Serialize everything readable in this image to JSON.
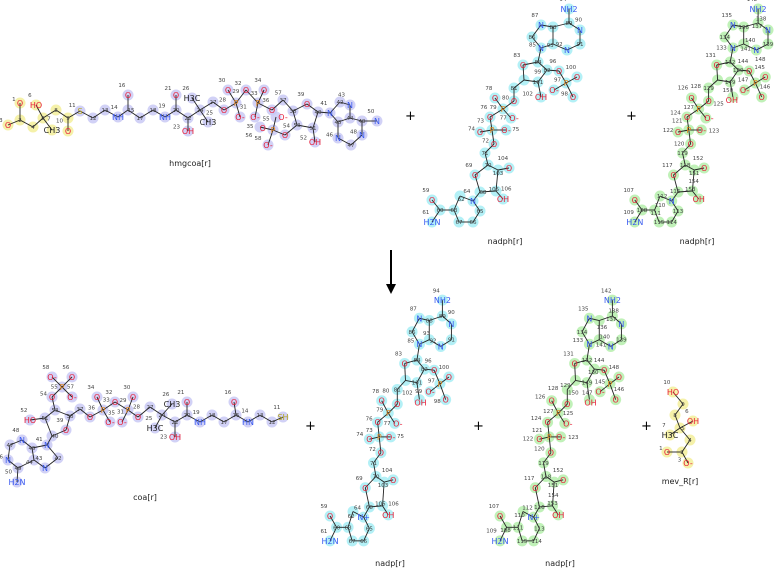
{
  "colors": {
    "O": "#e8203a",
    "N": "#3a5af0",
    "P": "#e0851f",
    "S": "#b3a31c",
    "C": "#222222",
    "hl_yellow": "#f3ee9a",
    "hl_lavender": "#c9c9f4",
    "hl_cyan": "#a6edf4",
    "hl_green": "#b5efab"
  },
  "reaction": {
    "plus_sign": "+",
    "arrow": "reaction-arrow-down"
  },
  "molecules": [
    {
      "id": "hmgcoa",
      "name": "hmgcoa[r]",
      "highlight_groups": [
        {
          "color": "hl_yellow",
          "atoms_upto": 10
        },
        {
          "color": "hl_lavender"
        }
      ],
      "atoms": [
        [
          "O",
          "1"
        ],
        [
          "",
          "2"
        ],
        [
          "O",
          "3"
        ],
        [
          "",
          "4"
        ],
        [
          "",
          "5"
        ],
        [
          "HO",
          "6"
        ],
        [
          "CH3",
          "7"
        ],
        [
          "",
          "8"
        ],
        [
          "",
          "9"
        ],
        [
          "O",
          "10"
        ],
        [
          "S",
          "11"
        ],
        [
          "",
          "12"
        ],
        [
          "",
          "13"
        ],
        [
          "NH",
          "14"
        ],
        [
          "",
          "15"
        ],
        [
          "O",
          "16"
        ],
        [
          "",
          "17"
        ],
        [
          "",
          "18"
        ],
        [
          "NH",
          "19"
        ],
        [
          "",
          "20"
        ],
        [
          "O",
          "21"
        ],
        [
          "",
          "22"
        ],
        [
          "OH",
          "23"
        ],
        [
          "",
          "24"
        ],
        [
          "CH3",
          "25"
        ],
        [
          "H3C",
          "26"
        ],
        [
          "",
          "27"
        ],
        [
          "O",
          "28"
        ],
        [
          "P",
          "29"
        ],
        [
          "O",
          "30"
        ],
        [
          "O-",
          "31"
        ],
        [
          "O",
          "32"
        ],
        [
          "P",
          "33"
        ],
        [
          "O",
          "34"
        ],
        [
          "O-",
          "35"
        ],
        [
          "O",
          "36"
        ],
        [
          "",
          "37"
        ],
        [
          "",
          "38"
        ],
        [
          "O",
          "39"
        ],
        [
          "",
          "40"
        ],
        [
          "",
          "51"
        ],
        [
          "",
          "53"
        ],
        [
          "O",
          "54"
        ],
        [
          "P",
          "55"
        ],
        [
          "O",
          "56"
        ],
        [
          "O-",
          "57"
        ],
        [
          "O-",
          "58"
        ],
        [
          "OH",
          "52"
        ],
        [
          "N",
          "41"
        ],
        [
          "",
          "42"
        ],
        [
          "N",
          "43"
        ],
        [
          "",
          "44"
        ],
        [
          "",
          "45"
        ],
        [
          "N",
          "46"
        ],
        [
          "",
          "47"
        ],
        [
          "N",
          "48"
        ],
        [
          "",
          "49"
        ],
        [
          "N",
          "50"
        ]
      ]
    },
    {
      "id": "nadph1",
      "name": "nadph[r]",
      "highlight": "hl_cyan",
      "atoms": [
        [
          "NH2",
          "94"
        ],
        [
          "",
          "89"
        ],
        [
          "N",
          "90"
        ],
        [
          "",
          "91"
        ],
        [
          "N",
          "92"
        ],
        [
          "",
          "93"
        ],
        [
          "",
          "88"
        ],
        [
          "N",
          "87"
        ],
        [
          "",
          "86"
        ],
        [
          "N",
          "85"
        ],
        [
          "",
          "84"
        ],
        [
          "",
          "82"
        ],
        [
          "",
          "101"
        ],
        [
          "",
          ""
        ],
        [
          "O",
          "83"
        ],
        [
          "O",
          "96"
        ],
        [
          "P",
          "97"
        ],
        [
          "O",
          "100"
        ],
        [
          "O",
          "98"
        ],
        [
          "O-",
          "99"
        ],
        [
          "OH",
          "102"
        ],
        [
          "",
          "81"
        ],
        [
          "O",
          "80"
        ],
        [
          "P",
          "79"
        ],
        [
          "O",
          "78"
        ],
        [
          "O-",
          "77"
        ],
        [
          "O",
          "76"
        ],
        [
          "P",
          "73"
        ],
        [
          "O",
          "74"
        ],
        [
          "O-",
          "75"
        ],
        [
          "O",
          "72"
        ],
        [
          "",
          "71"
        ],
        [
          "",
          "70"
        ],
        [
          "O",
          "69"
        ],
        [
          "",
          "68"
        ],
        [
          "",
          "105"
        ],
        [
          "",
          "103"
        ],
        [
          "O",
          "104"
        ],
        [
          "OH",
          "106"
        ],
        [
          "N",
          "64"
        ],
        [
          "",
          "62"
        ],
        [
          "",
          "63"
        ],
        [
          "",
          "67"
        ],
        [
          "",
          "66"
        ],
        [
          "",
          "65"
        ],
        [
          "",
          "60"
        ],
        [
          "O",
          "59"
        ],
        [
          "H2N",
          "61"
        ]
      ]
    },
    {
      "id": "nadph2",
      "name": "nadph[r]",
      "highlight": "hl_green",
      "atoms": [
        [
          "NH2",
          "142"
        ],
        [
          "",
          "137"
        ],
        [
          "N",
          "138"
        ],
        [
          "",
          "139"
        ],
        [
          "N",
          "140"
        ],
        [
          "",
          "141"
        ],
        [
          "",
          "136"
        ],
        [
          "N",
          "135"
        ],
        [
          "",
          "134"
        ],
        [
          "N",
          "133"
        ],
        [
          "",
          "132"
        ],
        [
          "",
          "130"
        ],
        [
          "",
          "149"
        ],
        [
          "",
          ""
        ],
        [
          "O",
          "131"
        ],
        [
          "O",
          "144"
        ],
        [
          "P",
          "145"
        ],
        [
          "O",
          "148"
        ],
        [
          "O",
          "146"
        ],
        [
          "O-",
          "147"
        ],
        [
          "OH",
          "150"
        ],
        [
          "",
          "129"
        ],
        [
          "O",
          "128"
        ],
        [
          "P",
          "127"
        ],
        [
          "O",
          "126"
        ],
        [
          "O-",
          "125"
        ],
        [
          "O",
          "124"
        ],
        [
          "P",
          "121"
        ],
        [
          "O",
          "122"
        ],
        [
          "O-",
          "123"
        ],
        [
          "O",
          "120"
        ],
        [
          "",
          "119"
        ],
        [
          "",
          "118"
        ],
        [
          "O",
          "117"
        ],
        [
          "",
          "116"
        ],
        [
          "",
          "153"
        ],
        [
          "",
          "151"
        ],
        [
          "O",
          "152"
        ],
        [
          "OH",
          "154"
        ],
        [
          "N",
          "112"
        ],
        [
          "",
          "110"
        ],
        [
          "",
          "111"
        ],
        [
          "",
          "115"
        ],
        [
          "",
          "114"
        ],
        [
          "",
          "113"
        ],
        [
          "",
          "108"
        ],
        [
          "O",
          "107"
        ],
        [
          "H2N",
          "109"
        ]
      ]
    },
    {
      "id": "coa",
      "name": "coa[r]",
      "highlight": "hl_lavender",
      "atoms": [
        [
          "O-",
          "58"
        ],
        [
          "P",
          "55"
        ],
        [
          "O",
          "56"
        ],
        [
          "O-",
          "57"
        ],
        [
          "O",
          "54"
        ],
        [
          "",
          "53"
        ],
        [
          "",
          "38"
        ],
        [
          "O",
          "39"
        ],
        [
          "",
          "40"
        ],
        [
          "",
          "51"
        ],
        [
          "HO",
          "52"
        ],
        [
          "N",
          "41"
        ],
        [
          "",
          "42"
        ],
        [
          "N",
          "43"
        ],
        [
          "",
          "44"
        ],
        [
          "",
          "45"
        ],
        [
          "N",
          "48"
        ],
        [
          "",
          "47"
        ],
        [
          "N",
          "46"
        ],
        [
          "",
          "49"
        ],
        [
          "H2N",
          "50"
        ],
        [
          "",
          "37"
        ],
        [
          "O",
          "36"
        ],
        [
          "P",
          "33"
        ],
        [
          "O",
          "34"
        ],
        [
          "O-",
          "35"
        ],
        [
          "O",
          "32"
        ],
        [
          "P",
          "29"
        ],
        [
          "O",
          "30"
        ],
        [
          "O-",
          "31"
        ],
        [
          "O",
          "28"
        ],
        [
          "",
          "27"
        ],
        [
          "",
          "24"
        ],
        [
          "CH3",
          "26"
        ],
        [
          "H3C",
          "25"
        ],
        [
          "",
          "22"
        ],
        [
          "OH",
          "23"
        ],
        [
          "",
          "20"
        ],
        [
          "O",
          "21"
        ],
        [
          "NH",
          "19"
        ],
        [
          "",
          "18"
        ],
        [
          "",
          "17"
        ],
        [
          "",
          "15"
        ],
        [
          "O",
          "16"
        ],
        [
          "HN",
          "14"
        ],
        [
          "",
          "13"
        ],
        [
          "",
          "12"
        ],
        [
          "SH",
          "11"
        ]
      ]
    },
    {
      "id": "nadp1",
      "name": "nadp[r]",
      "highlight": "hl_cyan",
      "atoms": [
        [
          "NH2",
          "94"
        ],
        [
          "",
          "89"
        ],
        [
          "N",
          "90"
        ],
        [
          "",
          "91"
        ],
        [
          "N",
          "92"
        ],
        [
          "",
          "93"
        ],
        [
          "",
          "88"
        ],
        [
          "N",
          "87"
        ],
        [
          "",
          "86"
        ],
        [
          "N",
          "85"
        ],
        [
          "",
          "84"
        ],
        [
          "",
          "82"
        ],
        [
          "",
          "101"
        ],
        [
          "",
          ""
        ],
        [
          "O",
          "83"
        ],
        [
          "O",
          "96"
        ],
        [
          "P",
          "97"
        ],
        [
          "O",
          "100"
        ],
        [
          "O",
          "98"
        ],
        [
          "O-",
          "99"
        ],
        [
          "OH",
          "102"
        ],
        [
          "",
          "81"
        ],
        [
          "O",
          "80"
        ],
        [
          "P",
          "79"
        ],
        [
          "O",
          "78"
        ],
        [
          "O-",
          "77"
        ],
        [
          "O",
          "76"
        ],
        [
          "P",
          "73"
        ],
        [
          "O",
          "74"
        ],
        [
          "O-",
          "75"
        ],
        [
          "O",
          "72"
        ],
        [
          "",
          "71"
        ],
        [
          "",
          "70"
        ],
        [
          "O",
          "69"
        ],
        [
          "",
          "68"
        ],
        [
          "",
          "105"
        ],
        [
          "",
          "103"
        ],
        [
          "O",
          "104"
        ],
        [
          "OH",
          "106"
        ],
        [
          "N+",
          "64"
        ],
        [
          "",
          "62"
        ],
        [
          "",
          "63"
        ],
        [
          "",
          "67"
        ],
        [
          "",
          "66"
        ],
        [
          "",
          "65"
        ],
        [
          "",
          "60"
        ],
        [
          "O",
          "59"
        ],
        [
          "H2N",
          "61"
        ]
      ]
    },
    {
      "id": "nadp2",
      "name": "nadp[r]",
      "highlight": "hl_green",
      "atoms": [
        [
          "NH2",
          "142"
        ],
        [
          "",
          "137"
        ],
        [
          "N",
          "138"
        ],
        [
          "",
          "139"
        ],
        [
          "N",
          "140"
        ],
        [
          "",
          "141"
        ],
        [
          "",
          "136"
        ],
        [
          "N",
          "135"
        ],
        [
          "",
          "134"
        ],
        [
          "N",
          "133"
        ],
        [
          "",
          "132"
        ],
        [
          "",
          "130"
        ],
        [
          "",
          "149"
        ],
        [
          "",
          ""
        ],
        [
          "O",
          "131"
        ],
        [
          "O",
          "144"
        ],
        [
          "P",
          "145"
        ],
        [
          "O",
          "148"
        ],
        [
          "O",
          "146"
        ],
        [
          "O-",
          "147"
        ],
        [
          "OH",
          "150"
        ],
        [
          "",
          "129"
        ],
        [
          "O",
          "128"
        ],
        [
          "P",
          "127"
        ],
        [
          "O",
          "126"
        ],
        [
          "O-",
          "125"
        ],
        [
          "O",
          "124"
        ],
        [
          "P",
          "121"
        ],
        [
          "O",
          "122"
        ],
        [
          "O-",
          "123"
        ],
        [
          "O",
          "120"
        ],
        [
          "",
          "119"
        ],
        [
          "",
          "118"
        ],
        [
          "O",
          "117"
        ],
        [
          "",
          "116"
        ],
        [
          "",
          "153"
        ],
        [
          "",
          "151"
        ],
        [
          "O",
          "152"
        ],
        [
          "OH",
          "154"
        ],
        [
          "N+",
          "112"
        ],
        [
          "",
          "110"
        ],
        [
          "",
          "111"
        ],
        [
          "",
          "115"
        ],
        [
          "",
          "114"
        ],
        [
          "",
          "113"
        ],
        [
          "",
          "108"
        ],
        [
          "O",
          "107"
        ],
        [
          "H2N",
          "109"
        ]
      ]
    },
    {
      "id": "mev",
      "name": "mev_R[r]",
      "highlight": "hl_yellow",
      "atoms": [
        [
          "HO",
          "10"
        ],
        [
          "",
          "9"
        ],
        [
          "",
          "8"
        ],
        [
          "",
          "5"
        ],
        [
          "OH",
          "6"
        ],
        [
          "H3C",
          "7"
        ],
        [
          "",
          "4"
        ],
        [
          "",
          "2"
        ],
        [
          "O",
          "1"
        ],
        [
          "O-",
          "3"
        ]
      ]
    }
  ]
}
